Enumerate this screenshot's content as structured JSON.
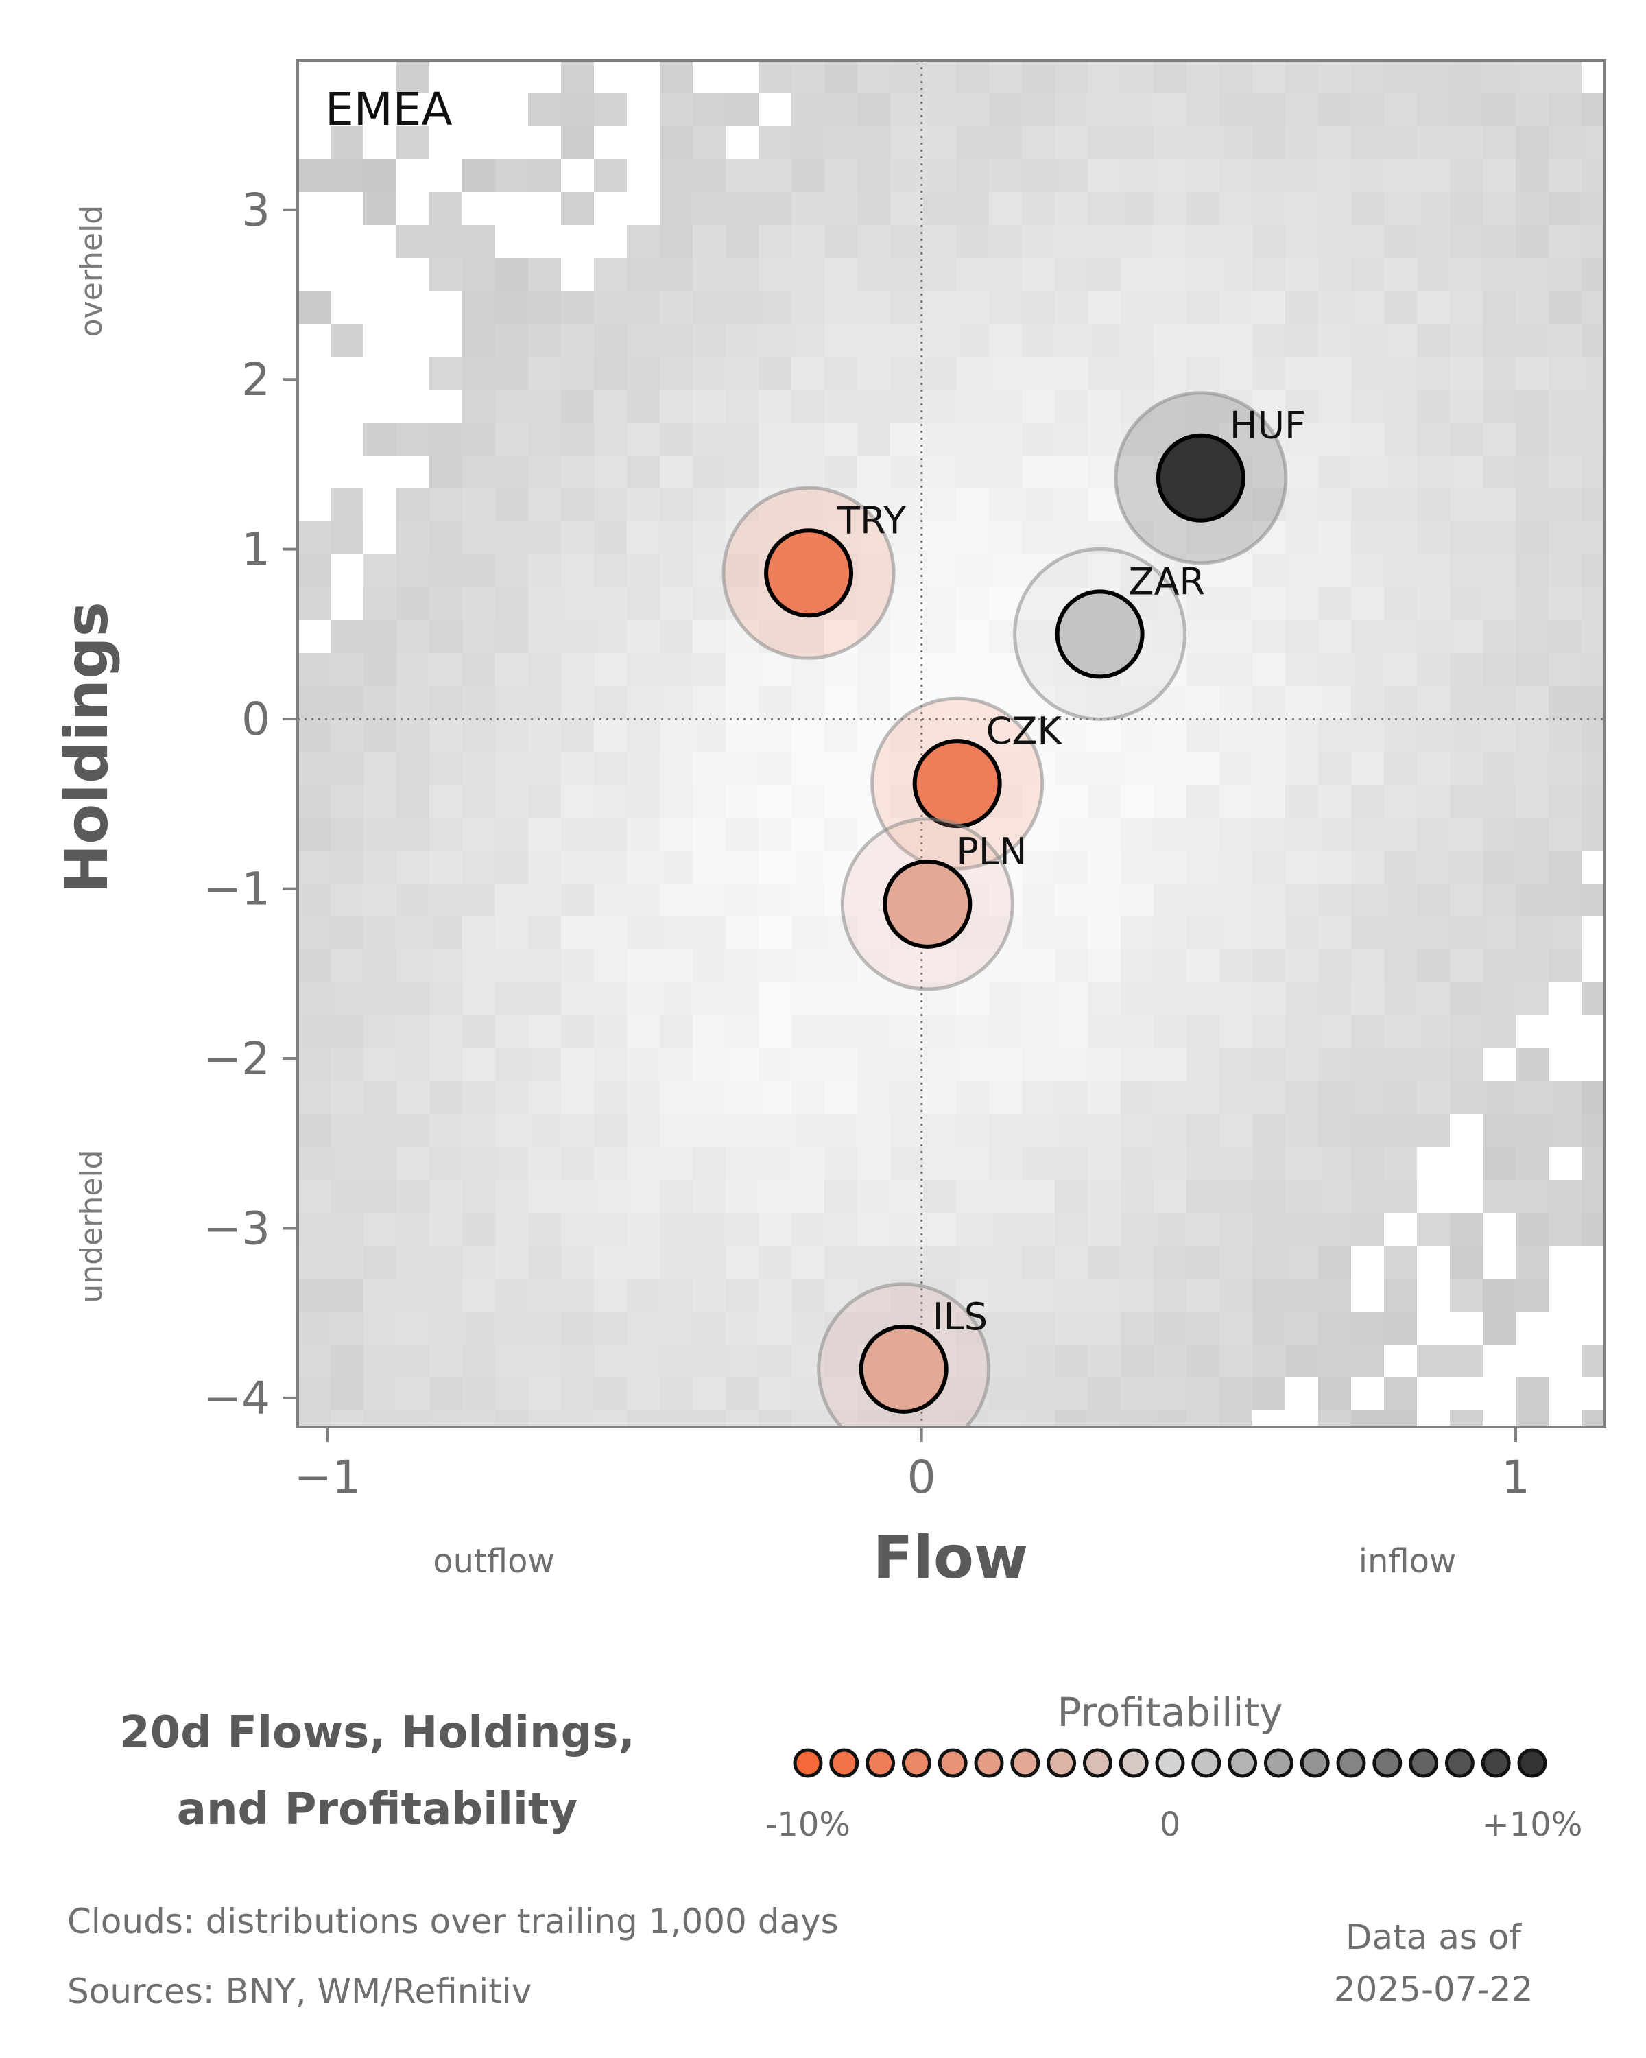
{
  "chart_data": {
    "type": "scatter",
    "panel_label": "EMEA",
    "xlabel": "Flow",
    "ylabel": "Holdings",
    "x_side_labels": {
      "left": "outflow",
      "right": "inflow"
    },
    "y_side_labels": {
      "top": "overheld",
      "bottom": "underheld"
    },
    "xlim": [
      -1.05,
      1.15
    ],
    "ylim": [
      -4.17,
      3.88
    ],
    "xticks": [
      -1,
      0,
      1
    ],
    "xtick_labels": [
      "−1",
      "0",
      "1"
    ],
    "yticks": [
      3,
      2,
      1,
      0,
      -1,
      -2,
      -3,
      -4
    ],
    "ytick_labels": [
      "3",
      "2",
      "1",
      "0",
      "−1",
      "−2",
      "−3",
      "−4"
    ],
    "reference_lines": {
      "x": 0,
      "y": 0
    },
    "points": [
      {
        "label": "HUF",
        "flow": 0.47,
        "holdings": 1.42,
        "profitability": 10
      },
      {
        "label": "TRY",
        "flow": -0.19,
        "holdings": 0.86,
        "profitability": -8
      },
      {
        "label": "ZAR",
        "flow": 0.3,
        "holdings": 0.5,
        "profitability": 1
      },
      {
        "label": "CZK",
        "flow": 0.06,
        "holdings": -0.38,
        "profitability": -8
      },
      {
        "label": "PLN",
        "flow": 0.01,
        "holdings": -1.09,
        "profitability": -4
      },
      {
        "label": "ILS",
        "flow": -0.03,
        "holdings": -3.83,
        "profitability": -4
      }
    ],
    "colorbar": {
      "title": "Profitability",
      "min_label": "-10%",
      "mid_label": "0",
      "max_label": "+10%",
      "low_color": "#f4683a",
      "mid_color": "#d4d4d4",
      "high_color": "#333333",
      "steps": 21
    },
    "background": "2D histogram of flow vs holdings over trailing 1,000 days (grey density cloud)"
  },
  "legend": {
    "title_line1": "20d Flows, Holdings,",
    "title_line2": "and Profitability"
  },
  "footer": {
    "clouds_note": "Clouds:  distributions over trailing 1,000 days",
    "sources_note": "Sources:  BNY, WM/Refinitiv",
    "asof_line1": "Data as of",
    "asof_line2": "2025-07-22"
  }
}
